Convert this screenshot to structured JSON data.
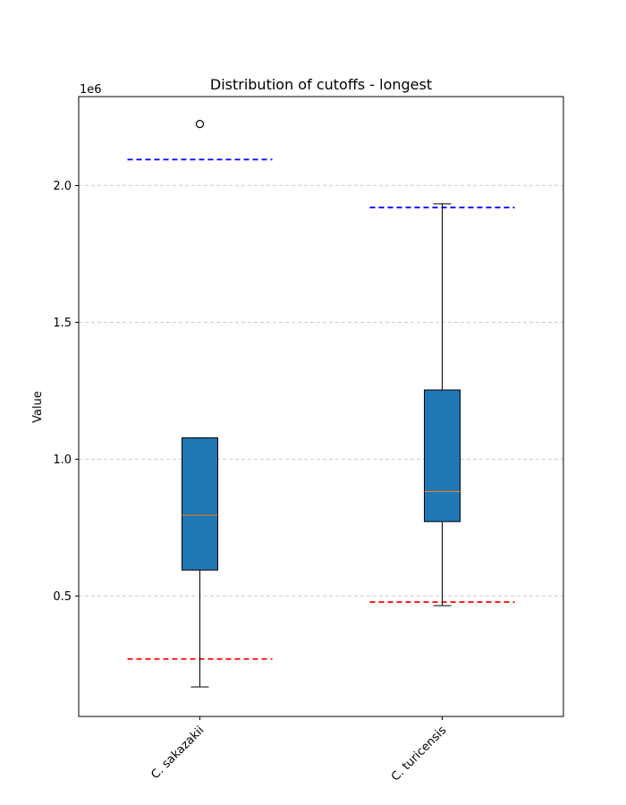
{
  "chart_data": {
    "type": "boxplot",
    "title": "Distribution of cutoffs - longest",
    "xlabel": "",
    "ylabel": "Value",
    "y_offset_label": "1e6",
    "y_scale_factor": 1000000,
    "ylim": [
      60000,
      2325000
    ],
    "yticks": [
      500000,
      1000000,
      1500000,
      2000000
    ],
    "ytick_labels": [
      "0.5",
      "1.0",
      "1.5",
      "2.0"
    ],
    "grid": "horizontal dashed",
    "categories": [
      "C. sakazakii",
      "C. turicensis"
    ],
    "boxes": [
      {
        "label": "C. sakazakii",
        "whisker_low": 168000,
        "q1": 595000,
        "median": 795000,
        "q3": 1078000,
        "whisker_high": 1078000,
        "outliers": [
          2225000
        ],
        "upper_cutoff": 2095000,
        "lower_cutoff": 270000
      },
      {
        "label": "C. turicensis",
        "whisker_low": 465000,
        "q1": 772000,
        "median": 882000,
        "q3": 1253000,
        "whisker_high": 1933000,
        "outliers": [],
        "upper_cutoff": 1920000,
        "lower_cutoff": 478000
      }
    ],
    "colors": {
      "box_fill": "#1f77b4",
      "median": "#ff7f0e",
      "upper_cutoff": "#0000ff",
      "lower_cutoff": "#ff0000",
      "grid": "#cccccc"
    }
  }
}
